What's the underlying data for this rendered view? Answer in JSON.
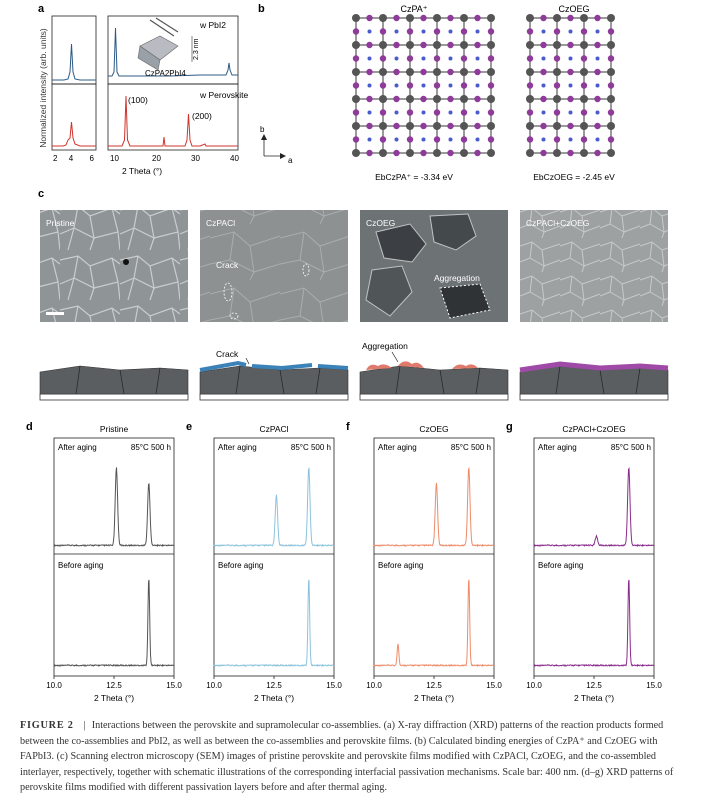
{
  "panel_letters": {
    "a": "a",
    "b": "b",
    "c": "c",
    "d": "d",
    "e": "e",
    "f": "f",
    "g": "g"
  },
  "panel_a": {
    "ylabel": "Normalized intensity (arb. units)",
    "xlabel": "2 Theta (°)",
    "top_label": "w PbI2",
    "bottom_label": "w Perovskite",
    "inset_label": "CzPA2PbI4",
    "inset_dim": "2.3 nm",
    "peak_100": "(100)",
    "peak_200": "(200)",
    "left_ticks": [
      "2",
      "4",
      "6"
    ],
    "right_ticks": [
      "10",
      "20",
      "30",
      "40"
    ]
  },
  "panel_b": {
    "left_title": "CzPA⁺",
    "right_title": "CzOEG",
    "left_energy": "EbCzPA⁺ = -3.34 eV",
    "right_energy": "EbCzOEG = -2.45 eV",
    "axis_b": "b",
    "axis_a": "a"
  },
  "panel_c": {
    "images": [
      "Pristine",
      "CzPACl",
      "CzOEG",
      "CzPACl+CzOEG"
    ],
    "crack_label": "Crack",
    "aggregation_label": "Aggregation",
    "schematic_crack": "Crack",
    "schematic_aggregation": "Aggregation",
    "colors": {
      "czpacl": "#3b82b8",
      "czoeg": "#e07a6c",
      "combo": "#a04aa8"
    }
  },
  "xrd_panels": [
    {
      "title": "Pristine",
      "color": "#555555"
    },
    {
      "title": "CzPACl",
      "color": "#8cc3dc"
    },
    {
      "title": "CzOEG",
      "color": "#ee8c6a"
    },
    {
      "title": "CzPACl+CzOEG",
      "color": "#8a2c8c"
    }
  ],
  "xrd_common": {
    "after": "After aging",
    "condition": "85°C 500 h",
    "before": "Before aging",
    "xlabel": "2 Theta (°)",
    "ticks": [
      "10.0",
      "12.5",
      "15.0"
    ]
  },
  "chart_data": [
    {
      "type": "line",
      "panel": "d",
      "title": "Pristine",
      "xlabel": "2 Theta (°)",
      "xlim": [
        10.0,
        15.0
      ],
      "series": [
        {
          "name": "After aging",
          "peaks": [
            {
              "x": 12.6,
              "intensity": 1.0
            },
            {
              "x": 13.95,
              "intensity": 0.8
            }
          ]
        },
        {
          "name": "Before aging",
          "peaks": [
            {
              "x": 13.95,
              "intensity": 1.0
            }
          ]
        }
      ]
    },
    {
      "type": "line",
      "panel": "e",
      "title": "CzPACl",
      "xlabel": "2 Theta (°)",
      "xlim": [
        10.0,
        15.0
      ],
      "series": [
        {
          "name": "After aging",
          "peaks": [
            {
              "x": 12.6,
              "intensity": 0.65
            },
            {
              "x": 13.95,
              "intensity": 1.0
            }
          ]
        },
        {
          "name": "Before aging",
          "peaks": [
            {
              "x": 13.95,
              "intensity": 1.0
            }
          ]
        }
      ]
    },
    {
      "type": "line",
      "panel": "f",
      "title": "CzOEG",
      "xlabel": "2 Theta (°)",
      "xlim": [
        10.0,
        15.0
      ],
      "series": [
        {
          "name": "After aging",
          "peaks": [
            {
              "x": 12.6,
              "intensity": 0.8
            },
            {
              "x": 13.95,
              "intensity": 1.0
            }
          ]
        },
        {
          "name": "Before aging",
          "peaks": [
            {
              "x": 11.0,
              "intensity": 0.25
            },
            {
              "x": 13.95,
              "intensity": 1.0
            }
          ]
        }
      ]
    },
    {
      "type": "line",
      "panel": "g",
      "title": "CzPACl+CzOEG",
      "xlabel": "2 Theta (°)",
      "xlim": [
        10.0,
        15.0
      ],
      "series": [
        {
          "name": "After aging",
          "peaks": [
            {
              "x": 12.6,
              "intensity": 0.12
            },
            {
              "x": 13.95,
              "intensity": 1.0
            }
          ]
        },
        {
          "name": "Before aging",
          "peaks": [
            {
              "x": 13.95,
              "intensity": 1.0
            }
          ]
        }
      ]
    },
    {
      "type": "line",
      "panel": "a",
      "xlabel": "2 Theta (°)",
      "series": [
        {
          "name": "w PbI2",
          "peaks": [
            {
              "x": 3.8,
              "intensity": 0.55
            },
            {
              "x": 11.4,
              "intensity": 0.6
            },
            {
              "x": 12.6,
              "intensity": 1.0
            },
            {
              "x": 34.6,
              "intensity": 0.2
            }
          ]
        },
        {
          "name": "w Perovskite",
          "peaks": [
            {
              "x": 3.8,
              "intensity": 0.4
            },
            {
              "x": 14.1,
              "intensity": 1.0
            },
            {
              "x": 23.8,
              "intensity": 0.15
            },
            {
              "x": 28.4,
              "intensity": 0.6
            },
            {
              "x": 31.9,
              "intensity": 0.1
            }
          ]
        }
      ]
    }
  ],
  "caption": {
    "label": "FIGURE 2",
    "separator": "|",
    "text": "Interactions between the perovskite and supramolecular co-assemblies. (a) X-ray diffraction (XRD) patterns of the reaction products formed between the co-assemblies and PbI2, as well as between the co-assemblies and perovskite films. (b) Calculated binding energies of CzPA⁺ and CzOEG with FAPbI3. (c) Scanning electron microscopy (SEM) images of pristine perovskite and perovskite films modified with CzPACl, CzOEG, and the co-assembled interlayer, respectively, together with schematic illustrations of the corresponding interfacial passivation mechanisms. Scale bar: 400 nm. (d–g) XRD patterns of perovskite films modified with different passivation layers before and after thermal aging."
  }
}
